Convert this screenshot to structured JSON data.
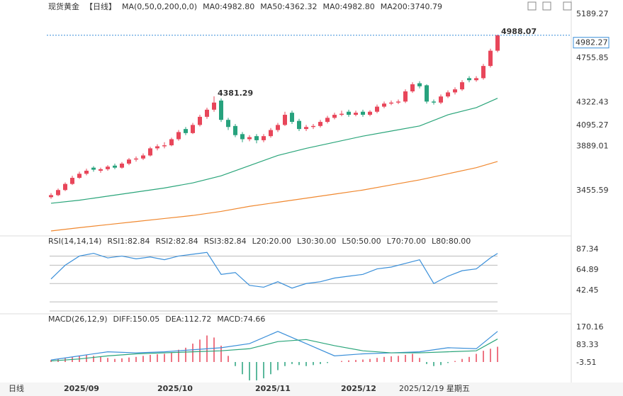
{
  "chart_data": [
    {
      "type": "candlestick",
      "header": [
        {
          "text": "现货黄金",
          "color": "#222222"
        },
        {
          "text": "【日线】",
          "color": "#e8891c"
        },
        {
          "text": "MA(0,50,0,200,0,0)",
          "color": "#222222"
        },
        {
          "text": "MA0:4982.80",
          "color": "#3a8fd9"
        },
        {
          "text": "MA50:4362.32",
          "color": "#2aa57a"
        },
        {
          "text": "MA0:4982.80",
          "color": "#3a8fd9"
        },
        {
          "text": "MA200:3740.79",
          "color": "#f0882f"
        }
      ],
      "ylim": [
        3030,
        5245
      ],
      "yticks": [
        3455.59,
        3889.01,
        4322.43,
        4755.85,
        5189.27
      ],
      "up_color": "#e8465a",
      "down_color": "#27a27d",
      "open": [
        3390,
        3410,
        3460,
        3520,
        3580,
        3620,
        3680,
        3650,
        3665,
        3700,
        3680,
        3720,
        3760,
        3770,
        3800,
        3870,
        3890,
        3900,
        3960,
        4060,
        4020,
        4100,
        4180,
        4250,
        4340,
        4150,
        4090,
        4010,
        3960,
        3990,
        3950,
        3990,
        4050,
        4100,
        4220,
        4140,
        4060,
        4080,
        4090,
        4130,
        4170,
        4200,
        4230,
        4200,
        4230,
        4200,
        4230,
        4280,
        4310,
        4320,
        4330,
        4430,
        4510,
        4490,
        4330,
        4320,
        4380,
        4420,
        4450,
        4560,
        4540,
        4560,
        4680,
        4830
      ],
      "high": [
        3430,
        3475,
        3535,
        3600,
        3640,
        3670,
        3695,
        3680,
        3705,
        3720,
        3735,
        3775,
        3790,
        3820,
        3885,
        3910,
        3930,
        3975,
        4050,
        4080,
        4120,
        4200,
        4270,
        4381.29,
        4360,
        4170,
        4110,
        4030,
        4000,
        4010,
        4010,
        4070,
        4120,
        4230,
        4240,
        4160,
        4100,
        4110,
        4150,
        4190,
        4220,
        4240,
        4250,
        4240,
        4250,
        4245,
        4300,
        4330,
        4340,
        4350,
        4450,
        4520,
        4530,
        4500,
        4350,
        4400,
        4440,
        4470,
        4540,
        4580,
        4580,
        4700,
        4850,
        4988.07
      ],
      "low": [
        3375,
        3400,
        3450,
        3510,
        3570,
        3605,
        3640,
        3630,
        3650,
        3665,
        3670,
        3705,
        3740,
        3755,
        3790,
        3850,
        3870,
        3890,
        3945,
        4000,
        4010,
        4085,
        4160,
        4230,
        4130,
        4050,
        3980,
        3930,
        3940,
        3920,
        3930,
        3975,
        4030,
        4090,
        4110,
        4040,
        4040,
        4060,
        4075,
        4115,
        4155,
        4185,
        4180,
        4185,
        4180,
        4185,
        4215,
        4265,
        4295,
        4305,
        4315,
        4415,
        4460,
        4310,
        4300,
        4305,
        4365,
        4400,
        4435,
        4520,
        4525,
        4545,
        4665,
        4815
      ],
      "close": [
        3410,
        3460,
        3520,
        3580,
        3620,
        3650,
        3660,
        3665,
        3690,
        3680,
        3720,
        3760,
        3770,
        3800,
        3870,
        3890,
        3900,
        3960,
        4030,
        4020,
        4100,
        4180,
        4250,
        4320,
        4150,
        4080,
        4000,
        3960,
        3980,
        3950,
        3990,
        4050,
        4100,
        4200,
        4130,
        4060,
        4080,
        4090,
        4130,
        4170,
        4200,
        4210,
        4200,
        4220,
        4200,
        4230,
        4280,
        4310,
        4320,
        4330,
        4430,
        4500,
        4480,
        4330,
        4320,
        4380,
        4420,
        4450,
        4520,
        4540,
        4560,
        4680,
        4830,
        4982.27
      ],
      "series": [
        {
          "name": "MA50",
          "color": "#2aa57a",
          "x": [
            0,
            4,
            8,
            12,
            16,
            20,
            24,
            28,
            32,
            36,
            40,
            44,
            48,
            52,
            56,
            60,
            63
          ],
          "values": [
            3330,
            3360,
            3400,
            3440,
            3480,
            3530,
            3600,
            3700,
            3800,
            3870,
            3930,
            3990,
            4040,
            4090,
            4200,
            4270,
            4362.32
          ]
        },
        {
          "name": "MA200",
          "color": "#f0882f",
          "x": [
            0,
            4,
            8,
            12,
            16,
            20,
            24,
            28,
            32,
            36,
            40,
            44,
            48,
            52,
            56,
            60,
            63
          ],
          "values": [
            3058,
            3090,
            3120,
            3150,
            3180,
            3210,
            3250,
            3300,
            3340,
            3380,
            3420,
            3460,
            3510,
            3560,
            3620,
            3680,
            3740.79
          ]
        }
      ],
      "high_marks": [
        4381.29,
        4988.07
      ],
      "last_price": 4982.27,
      "side_label": 4095.27,
      "x_labels": [
        "2025/09",
        "2025/10",
        "2025/11",
        "2025/12",
        "2025/12/19 星期五"
      ],
      "period_label": "日线"
    },
    {
      "type": "line",
      "header": [
        {
          "text": "RSI(14,14,14)",
          "color": "#222222"
        },
        {
          "text": "RSI1:82.84",
          "color": "#3a8fd9"
        },
        {
          "text": "RSI2:82.84",
          "color": "#2aa57a"
        },
        {
          "text": "RSI3:82.84",
          "color": "#3a8fd9"
        },
        {
          "text": "L20:20.00",
          "color": "#aaaaaa"
        },
        {
          "text": "L30:30.00",
          "color": "#aaaaaa"
        },
        {
          "text": "L50:50.00",
          "color": "#aaaaaa"
        },
        {
          "text": "L70:70.00",
          "color": "#aaaaaa"
        },
        {
          "text": "L80:80.00",
          "color": "#aaaaaa"
        }
      ],
      "ylim": [
        17.7,
        96.6
      ],
      "yticks": [
        42.45,
        64.89,
        87.34
      ],
      "levels": [
        20,
        30,
        50,
        70,
        80
      ],
      "series": [
        {
          "name": "RSI1",
          "color": "#3a8fd9",
          "x": [
            0,
            2,
            4,
            6,
            8,
            10,
            12,
            14,
            16,
            18,
            20,
            22,
            24,
            26,
            28,
            30,
            32,
            34,
            36,
            38,
            40,
            42,
            44,
            46,
            48,
            50,
            52,
            54,
            56,
            58,
            60,
            62,
            63
          ],
          "values": [
            55,
            70,
            80,
            83,
            78,
            80,
            77,
            79,
            76,
            80,
            82,
            84,
            60,
            62,
            48,
            46,
            52,
            45,
            50,
            52,
            56,
            58,
            60,
            66,
            68,
            72,
            76,
            50,
            58,
            64,
            66,
            78,
            82.84
          ]
        }
      ]
    },
    {
      "type": "macd",
      "header": [
        {
          "text": "MACD(26,12,9)",
          "color": "#222222"
        },
        {
          "text": "DIFF:150.05",
          "color": "#3a8fd9"
        },
        {
          "text": "DEA:112.72",
          "color": "#2aa57a"
        },
        {
          "text": "MACD:74.66",
          "color": "#3a8fd9"
        }
      ],
      "ylim": [
        -100.7,
        229.2
      ],
      "yticks": [
        -3.51,
        83.33,
        170.16
      ],
      "up_color": "#e8465a",
      "down_color": "#27a27d",
      "values": [
        10,
        15,
        20,
        25,
        30,
        35,
        30,
        25,
        20,
        15,
        18,
        22,
        25,
        30,
        35,
        38,
        40,
        45,
        60,
        70,
        90,
        110,
        130,
        120,
        80,
        30,
        -20,
        -60,
        -90,
        -90,
        -80,
        -60,
        -40,
        -20,
        -10,
        -15,
        -20,
        -15,
        -10,
        -5,
        0,
        5,
        8,
        10,
        12,
        15,
        20,
        25,
        28,
        30,
        35,
        40,
        20,
        -10,
        -20,
        -15,
        -5,
        5,
        15,
        25,
        40,
        55,
        65,
        74.66
      ],
      "series": [
        {
          "name": "DIFF",
          "color": "#3a8fd9",
          "x": [
            0,
            4,
            8,
            12,
            16,
            20,
            24,
            28,
            32,
            36,
            40,
            44,
            48,
            52,
            56,
            60,
            63
          ],
          "values": [
            10,
            30,
            50,
            45,
            50,
            60,
            70,
            90,
            150,
            90,
            30,
            40,
            45,
            50,
            70,
            65,
            150.05
          ]
        },
        {
          "name": "DEA",
          "color": "#2aa57a",
          "x": [
            0,
            4,
            8,
            12,
            16,
            20,
            24,
            28,
            32,
            36,
            40,
            44,
            48,
            52,
            56,
            60,
            63
          ],
          "values": [
            5,
            15,
            30,
            40,
            45,
            50,
            55,
            65,
            100,
            110,
            80,
            55,
            45,
            45,
            50,
            55,
            112.72
          ]
        }
      ]
    }
  ]
}
